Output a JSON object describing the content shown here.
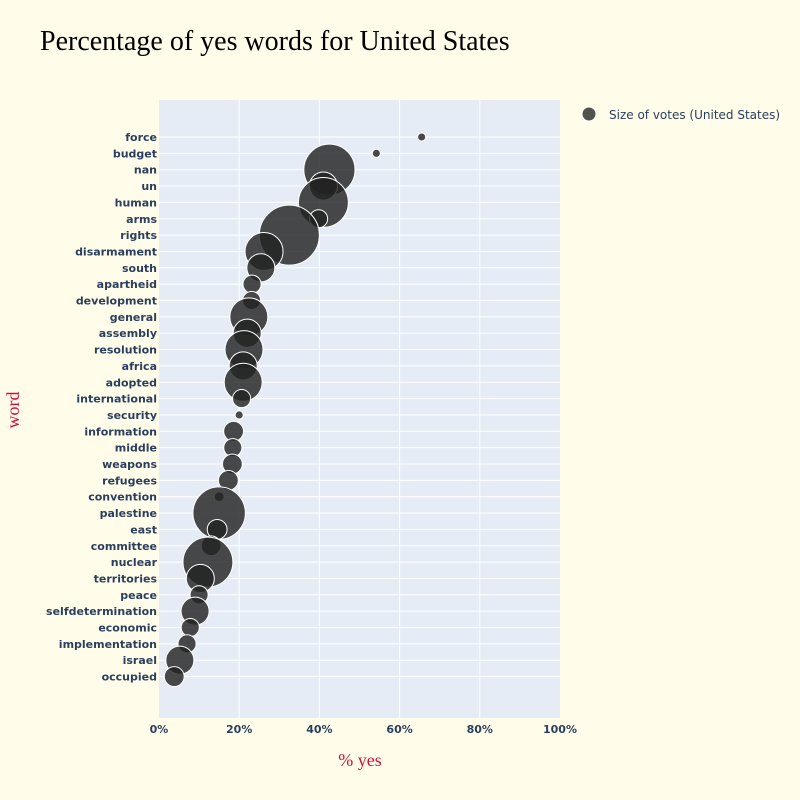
{
  "chart_data": {
    "type": "scatter",
    "title": "Percentage of yes words for United States",
    "xlabel": "% yes",
    "ylabel": "word",
    "xlim": [
      0,
      1
    ],
    "x_ticks": [
      {
        "value": 0,
        "label": "0%"
      },
      {
        "value": 0.2,
        "label": "20%"
      },
      {
        "value": 0.4,
        "label": "40%"
      },
      {
        "value": 0.6,
        "label": "60%"
      },
      {
        "value": 0.8,
        "label": "80%"
      },
      {
        "value": 1.0,
        "label": "100%"
      }
    ],
    "legend": {
      "label": "Size of votes (United States)",
      "position": "top-right"
    },
    "colors": {
      "marker": "#222222",
      "plot_bg": "#e5ecf6",
      "page_bg": "#fffdea",
      "grid": "#ffffff"
    },
    "series": [
      {
        "name": "Size of votes (United States)",
        "points": [
          {
            "word": "force",
            "x": 0.655,
            "size": 1
          },
          {
            "word": "budget",
            "x": 0.542,
            "size": 1
          },
          {
            "word": "nan",
            "x": 0.425,
            "size": 40
          },
          {
            "word": "un",
            "x": 0.41,
            "size": 12
          },
          {
            "word": "human",
            "x": 0.41,
            "size": 38
          },
          {
            "word": "arms",
            "x": 0.398,
            "size": 5
          },
          {
            "word": "rights",
            "x": 0.325,
            "size": 55
          },
          {
            "word": "disarmament",
            "x": 0.262,
            "size": 22
          },
          {
            "word": "south",
            "x": 0.254,
            "size": 12
          },
          {
            "word": "apartheid",
            "x": 0.232,
            "size": 5
          },
          {
            "word": "development",
            "x": 0.231,
            "size": 5
          },
          {
            "word": "general",
            "x": 0.224,
            "size": 22
          },
          {
            "word": "assembly",
            "x": 0.22,
            "size": 12
          },
          {
            "word": "resolution",
            "x": 0.212,
            "size": 22
          },
          {
            "word": "africa",
            "x": 0.21,
            "size": 12
          },
          {
            "word": "adopted",
            "x": 0.21,
            "size": 22
          },
          {
            "word": "international",
            "x": 0.206,
            "size": 5
          },
          {
            "word": "security",
            "x": 0.2,
            "size": 1
          },
          {
            "word": "information",
            "x": 0.186,
            "size": 6
          },
          {
            "word": "middle",
            "x": 0.184,
            "size": 5
          },
          {
            "word": "weapons",
            "x": 0.183,
            "size": 6
          },
          {
            "word": "refugees",
            "x": 0.173,
            "size": 6
          },
          {
            "word": "convention",
            "x": 0.15,
            "size": 1.5
          },
          {
            "word": "palestine",
            "x": 0.15,
            "size": 42
          },
          {
            "word": "east",
            "x": 0.145,
            "size": 6
          },
          {
            "word": "committee",
            "x": 0.13,
            "size": 6
          },
          {
            "word": "nuclear",
            "x": 0.122,
            "size": 38
          },
          {
            "word": "territories",
            "x": 0.103,
            "size": 12
          },
          {
            "word": "peace",
            "x": 0.1,
            "size": 5
          },
          {
            "word": "selfdetermination",
            "x": 0.09,
            "size": 12
          },
          {
            "word": "economic",
            "x": 0.078,
            "size": 5
          },
          {
            "word": "implementation",
            "x": 0.07,
            "size": 5
          },
          {
            "word": "israel",
            "x": 0.052,
            "size": 12
          },
          {
            "word": "occupied",
            "x": 0.038,
            "size": 6
          }
        ]
      }
    ]
  }
}
